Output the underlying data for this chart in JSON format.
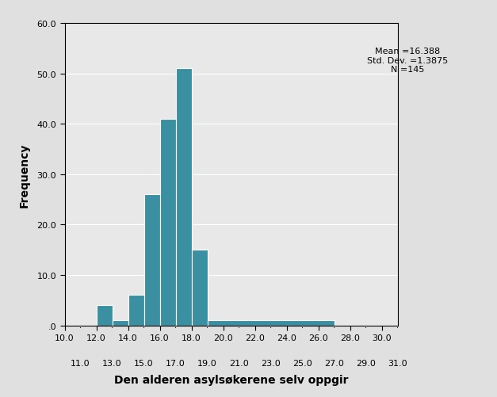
{
  "title": "",
  "xlabel": "Den alderen asylsøkerene selv oppgir",
  "ylabel": "Frequency",
  "bar_color": "#3a8fa0",
  "bar_edge_color": "#ffffff",
  "plot_bg_color": "#e8e8e8",
  "fig_bg_color": "#e0e0e0",
  "xlim": [
    10.0,
    31.0
  ],
  "ylim": [
    0.0,
    60.0
  ],
  "xticks_major": [
    10.0,
    12.0,
    14.0,
    16.0,
    18.0,
    20.0,
    22.0,
    24.0,
    26.0,
    28.0,
    30.0
  ],
  "xticks_minor": [
    11.0,
    13.0,
    15.0,
    17.0,
    19.0,
    21.0,
    23.0,
    25.0,
    27.0,
    29.0,
    31.0
  ],
  "yticks": [
    0.0,
    10.0,
    20.0,
    30.0,
    40.0,
    50.0,
    60.0
  ],
  "ytick_labels": [
    ".0",
    "10.0",
    "20.0",
    "30.0",
    "40.0",
    "50.0",
    "60.0"
  ],
  "bin_edges": [
    12.0,
    13.0,
    14.0,
    15.0,
    16.0,
    17.0,
    18.0,
    19.0,
    27.0,
    28.0
  ],
  "frequencies": [
    4,
    1,
    6,
    26,
    41,
    51,
    15,
    1
  ],
  "annotation_text": "Mean =16.388\nStd. Dev. =1.3875\nN =145",
  "annotation_fontsize": 8
}
